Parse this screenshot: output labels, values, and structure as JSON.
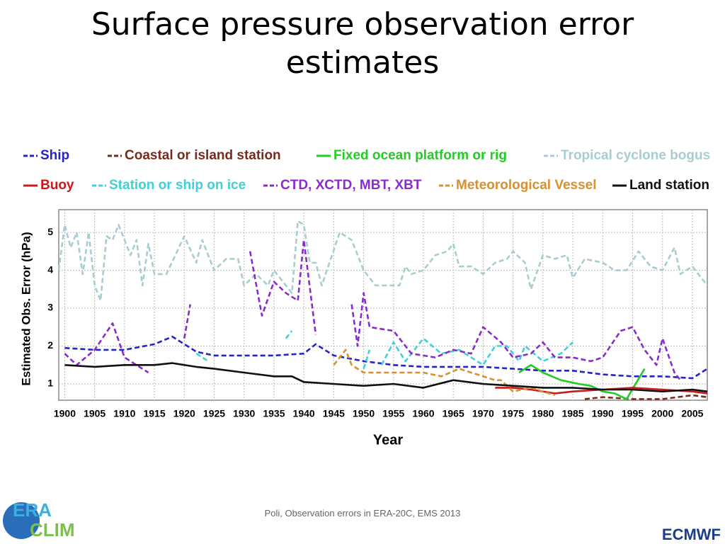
{
  "chart_data": {
    "type": "line",
    "title": "Surface pressure observation error estimates",
    "xlabel": "Year",
    "ylabel": "Estimated Obs. Error (hPa)",
    "xlim": [
      1899,
      2007.5
    ],
    "ylim": [
      0.57,
      5.6
    ],
    "xticks": [
      1900,
      1905,
      1910,
      1915,
      1920,
      1925,
      1930,
      1935,
      1940,
      1945,
      1950,
      1955,
      1960,
      1965,
      1970,
      1975,
      1980,
      1985,
      1990,
      1995,
      2000,
      2005
    ],
    "yticks": [
      1,
      2,
      3,
      4,
      5
    ],
    "grid": true,
    "series": [
      {
        "name": "Ship",
        "color": "#2424c8",
        "dash": true,
        "x": [
          1900,
          1905,
          1910,
          1915,
          1918,
          1922,
          1925,
          1930,
          1935,
          1940,
          1942,
          1945,
          1950,
          1955,
          1960,
          1965,
          1970,
          1975,
          1980,
          1985,
          1990,
          1995,
          2000,
          2005,
          2007.5
        ],
        "values": [
          1.95,
          1.9,
          1.9,
          2.05,
          2.25,
          1.85,
          1.75,
          1.75,
          1.75,
          1.8,
          2.05,
          1.75,
          1.6,
          1.5,
          1.45,
          1.45,
          1.45,
          1.4,
          1.35,
          1.35,
          1.25,
          1.2,
          1.2,
          1.15,
          1.4
        ]
      },
      {
        "name": "Coastal or island station",
        "color": "#7a2a1a",
        "dash": true,
        "x": [
          1987,
          1990,
          1995,
          2000,
          2005,
          2007.5
        ],
        "values": [
          0.6,
          0.65,
          0.6,
          0.6,
          0.7,
          0.65
        ]
      },
      {
        "name": "Fixed ocean platform or rig",
        "color": "#22cc22",
        "dash": false,
        "x": [
          1976,
          1978,
          1980,
          1983,
          1986,
          1988,
          1990,
          1992,
          1994,
          1997
        ],
        "values": [
          1.3,
          1.5,
          1.3,
          1.1,
          1.0,
          0.95,
          0.8,
          0.75,
          0.6,
          1.4
        ]
      },
      {
        "name": "Tropical cyclone bogus",
        "color": "#a8cdd0",
        "dash": true,
        "x": [
          1899,
          1900,
          1901,
          1902,
          1903,
          1904,
          1905,
          1906,
          1907,
          1908,
          1909,
          1910,
          1911,
          1912,
          1913,
          1914,
          1915,
          1917,
          1920,
          1922,
          1923,
          1925,
          1927,
          1929,
          1930,
          1932,
          1934,
          1935,
          1938,
          1939,
          1940,
          1941,
          1942,
          1943,
          1946,
          1948,
          1950,
          1952,
          1954,
          1956,
          1957,
          1958,
          1960,
          1962,
          1964,
          1965,
          1966,
          1968,
          1970,
          1972,
          1974,
          1975,
          1977,
          1978,
          1980,
          1982,
          1984,
          1985,
          1987,
          1990,
          1992,
          1994,
          1996,
          1998,
          2000,
          2002,
          2003,
          2005,
          2007.5
        ],
        "values": [
          4.0,
          5.2,
          4.6,
          5.0,
          3.9,
          5.0,
          3.6,
          3.2,
          4.9,
          4.8,
          5.2,
          4.8,
          4.4,
          4.8,
          3.6,
          4.7,
          3.9,
          3.9,
          4.9,
          4.2,
          4.8,
          4.0,
          4.3,
          4.3,
          3.6,
          3.9,
          3.6,
          4.0,
          3.4,
          5.3,
          5.2,
          4.2,
          4.2,
          3.6,
          5.0,
          4.8,
          4.0,
          3.6,
          3.6,
          3.6,
          4.1,
          3.9,
          4.0,
          4.4,
          4.5,
          4.7,
          4.1,
          4.1,
          3.9,
          4.2,
          4.3,
          4.5,
          4.2,
          3.5,
          4.4,
          4.3,
          4.4,
          3.8,
          4.3,
          4.2,
          4.0,
          4.0,
          4.5,
          4.1,
          4.0,
          4.6,
          3.9,
          4.1,
          3.6
        ]
      },
      {
        "name": "Buoy",
        "color": "#cc1a1a",
        "dash": false,
        "x": [
          1972,
          1975,
          1978,
          1982,
          1985,
          1990,
          1995,
          2000,
          2005,
          2007.5
        ],
        "values": [
          0.9,
          0.9,
          0.85,
          0.75,
          0.8,
          0.85,
          0.9,
          0.85,
          0.8,
          0.75
        ]
      },
      {
        "name": "Station or ship on ice",
        "color": "#40d0d8",
        "dash": true,
        "x": [
          1922,
          1924,
          1930,
          1937,
          1938,
          1944,
          1950,
          1951,
          1952,
          1953,
          1955,
          1957,
          1960,
          1963,
          1966,
          1970,
          1972,
          1974,
          1976,
          1977,
          1980,
          1983,
          1985
        ],
        "values": [
          1.8,
          1.6,
          null,
          2.2,
          2.4,
          null,
          1.4,
          1.9,
          null,
          1.5,
          2.1,
          1.6,
          2.2,
          1.8,
          1.9,
          1.5,
          2.0,
          2.0,
          1.6,
          2.0,
          1.6,
          1.8,
          2.1
        ]
      },
      {
        "name": "CTD, XCTD, MBT, XBT",
        "color": "#8a2ccc",
        "dash": true,
        "x": [
          1900,
          1902,
          1905,
          1908,
          1910,
          1914,
          1917,
          1920,
          1921,
          1926,
          1931,
          1933,
          1935,
          1937,
          1939,
          1940,
          1942,
          1945,
          1948,
          1949,
          1950,
          1951,
          1955,
          1958,
          1962,
          1965,
          1968,
          1970,
          1973,
          1975,
          1978,
          1980,
          1982,
          1985,
          1988,
          1990,
          1993,
          1995,
          1997,
          1999,
          2000,
          2002,
          2003
        ],
        "values": [
          1.8,
          1.5,
          1.9,
          2.6,
          1.7,
          1.3,
          null,
          2.2,
          3.1,
          null,
          4.5,
          2.8,
          3.7,
          3.4,
          3.2,
          4.8,
          2.3,
          null,
          3.1,
          2.0,
          3.4,
          2.5,
          2.4,
          1.8,
          1.7,
          1.9,
          1.8,
          2.5,
          2.1,
          1.7,
          1.8,
          2.1,
          1.7,
          1.7,
          1.6,
          1.7,
          2.4,
          2.5,
          1.9,
          1.5,
          2.2,
          1.3,
          1.1
        ]
      },
      {
        "name": "Meteorological Vessel",
        "color": "#d89030",
        "dash": true,
        "x": [
          1945,
          1947,
          1948,
          1950,
          1955,
          1960,
          1963,
          1966,
          1970,
          1972,
          1973,
          1975,
          1978,
          1982
        ],
        "values": [
          1.5,
          1.9,
          1.5,
          1.3,
          1.3,
          1.3,
          1.2,
          1.4,
          1.2,
          1.1,
          1.1,
          0.8,
          0.9,
          0.7
        ]
      },
      {
        "name": "Land station",
        "color": "#111111",
        "dash": false,
        "x": [
          1900,
          1905,
          1910,
          1915,
          1918,
          1922,
          1925,
          1930,
          1935,
          1938,
          1940,
          1945,
          1950,
          1955,
          1960,
          1965,
          1970,
          1975,
          1980,
          1985,
          1990,
          1995,
          2000,
          2005,
          2007.5
        ],
        "values": [
          1.5,
          1.45,
          1.5,
          1.5,
          1.55,
          1.45,
          1.4,
          1.3,
          1.2,
          1.2,
          1.05,
          1.0,
          0.95,
          1.0,
          0.9,
          1.1,
          1.0,
          0.95,
          0.9,
          0.9,
          0.85,
          0.85,
          0.8,
          0.85,
          0.8
        ]
      }
    ]
  },
  "footer": "Poli, Observation errors in ERA-20C, EMS 2013",
  "logos": {
    "left_top": "ERA",
    "left_bottom": "CLIM",
    "right": "ECMWF"
  }
}
